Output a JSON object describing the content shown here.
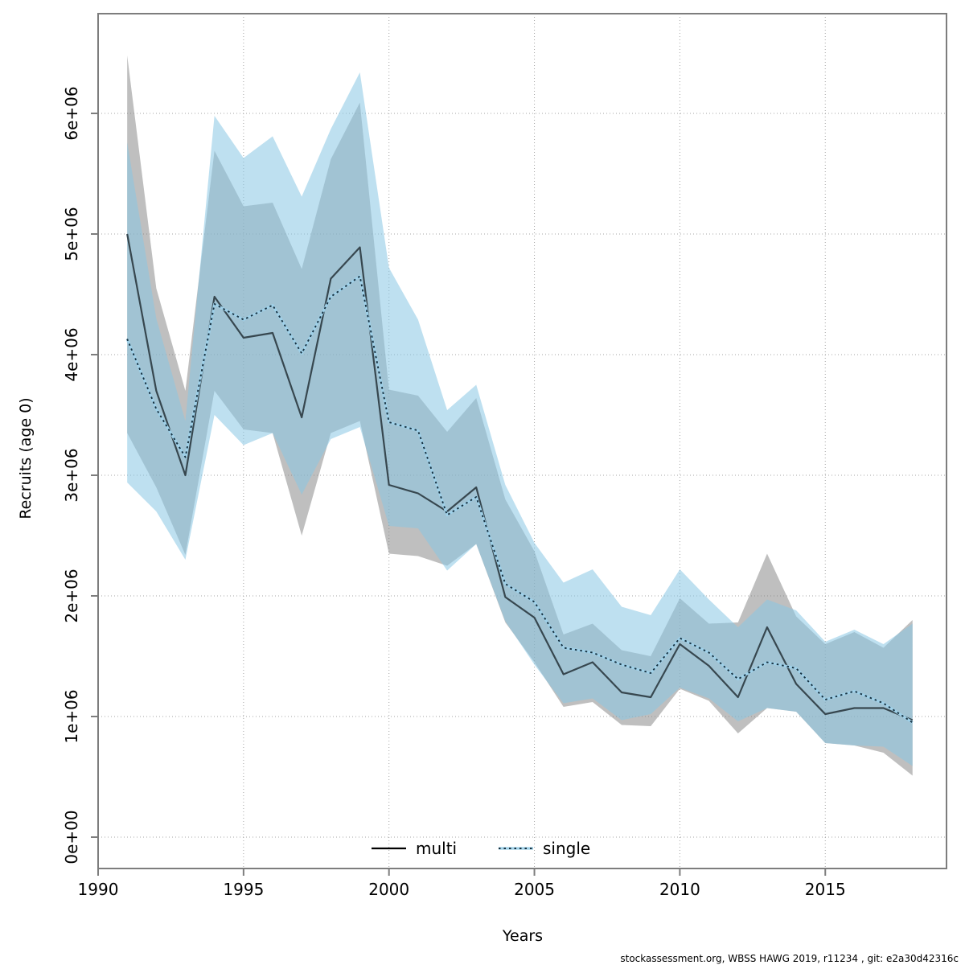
{
  "footer": {
    "text": "stockassessment.org, WBSS HAWG 2019, r11234 , git: e2a30d42316c"
  },
  "chart_data": {
    "type": "line",
    "title": "",
    "xlabel": "Years",
    "ylabel": "Recruits (age 0)",
    "grid": true,
    "x_ticks": [
      1990,
      1995,
      2000,
      2005,
      2010,
      2015
    ],
    "x_tick_labels": [
      "1990",
      "1995",
      "2000",
      "2005",
      "2010",
      "2015"
    ],
    "y_tick_values": [
      0,
      1000000,
      2000000,
      3000000,
      4000000,
      5000000,
      6000000
    ],
    "y_tick_labels": [
      "0e+00",
      "1e+06",
      "2e+06",
      "3e+06",
      "4e+06",
      "5e+06",
      "6e+06"
    ],
    "x_range": [
      1990,
      2019.2
    ],
    "y_range": [
      -260000,
      6840000
    ],
    "years": [
      1991,
      1992,
      1993,
      1994,
      1995,
      1996,
      1997,
      1998,
      1999,
      2000,
      2001,
      2002,
      2003,
      2004,
      2005,
      2006,
      2007,
      2008,
      2009,
      2010,
      2011,
      2012,
      2013,
      2014,
      2015,
      2016,
      2017,
      2018
    ],
    "series": [
      {
        "name": "multi",
        "style": "solid",
        "line_color": "#37474f",
        "legend_color": "#000000",
        "values": [
          5000000,
          3700000,
          3000000,
          4480000,
          4140000,
          4180000,
          3480000,
          4630000,
          4890000,
          2920000,
          2850000,
          2700000,
          2900000,
          1990000,
          1820000,
          1350000,
          1450000,
          1200000,
          1160000,
          1600000,
          1420000,
          1160000,
          1740000,
          1270000,
          1020000,
          1070000,
          1070000,
          970000
        ]
      },
      {
        "name": "single",
        "style": "dotted",
        "line_color": "#16303f",
        "halo_color": "#9fd0e8",
        "values": [
          4130000,
          3550000,
          3150000,
          4420000,
          4290000,
          4410000,
          4010000,
          4480000,
          4650000,
          3440000,
          3370000,
          2670000,
          2820000,
          2100000,
          1950000,
          1570000,
          1530000,
          1430000,
          1360000,
          1650000,
          1530000,
          1310000,
          1450000,
          1400000,
          1140000,
          1210000,
          1110000,
          950000
        ]
      }
    ],
    "bands": [
      {
        "name": "multi-ci",
        "fill": "rgba(128,128,128,0.50)",
        "lower": [
          3350000,
          2900000,
          2340000,
          3700000,
          3380000,
          3350000,
          2500000,
          3350000,
          3450000,
          2350000,
          2330000,
          2250000,
          2430000,
          1780000,
          1450000,
          1080000,
          1120000,
          930000,
          920000,
          1230000,
          1130000,
          860000,
          1070000,
          1040000,
          780000,
          760000,
          700000,
          510000
        ],
        "upper": [
          6480000,
          4550000,
          3700000,
          5690000,
          5230000,
          5260000,
          4710000,
          5620000,
          6090000,
          3710000,
          3660000,
          3360000,
          3640000,
          2800000,
          2370000,
          1680000,
          1770000,
          1550000,
          1500000,
          1980000,
          1770000,
          1780000,
          2350000,
          1830000,
          1600000,
          1700000,
          1570000,
          1800000
        ]
      },
      {
        "name": "single-ci",
        "fill": "rgba(137,199,227,0.55)",
        "lower": [
          2940000,
          2700000,
          2300000,
          3500000,
          3250000,
          3350000,
          2840000,
          3300000,
          3400000,
          2580000,
          2560000,
          2210000,
          2430000,
          1790000,
          1430000,
          1110000,
          1150000,
          970000,
          1020000,
          1240000,
          1150000,
          960000,
          1070000,
          1040000,
          780000,
          760000,
          750000,
          590000
        ],
        "upper": [
          5760000,
          4300000,
          3450000,
          5980000,
          5630000,
          5810000,
          5310000,
          5870000,
          6340000,
          4720000,
          4290000,
          3540000,
          3750000,
          2920000,
          2440000,
          2110000,
          2220000,
          1910000,
          1840000,
          2220000,
          1970000,
          1740000,
          1970000,
          1880000,
          1620000,
          1720000,
          1600000,
          1770000
        ]
      }
    ],
    "legend": {
      "position": "bottom-center",
      "items": [
        {
          "label": "multi",
          "sample": "solid-black"
        },
        {
          "label": "single",
          "sample": "dotted-blue"
        }
      ]
    },
    "colors": {
      "grid": "#a6a6a6",
      "frame": "#7d7d7d",
      "band_multi_visible": "#bebebe",
      "band_single_visible": "#c9e2f0",
      "band_overlap_visible": "#a3c1d4"
    }
  }
}
